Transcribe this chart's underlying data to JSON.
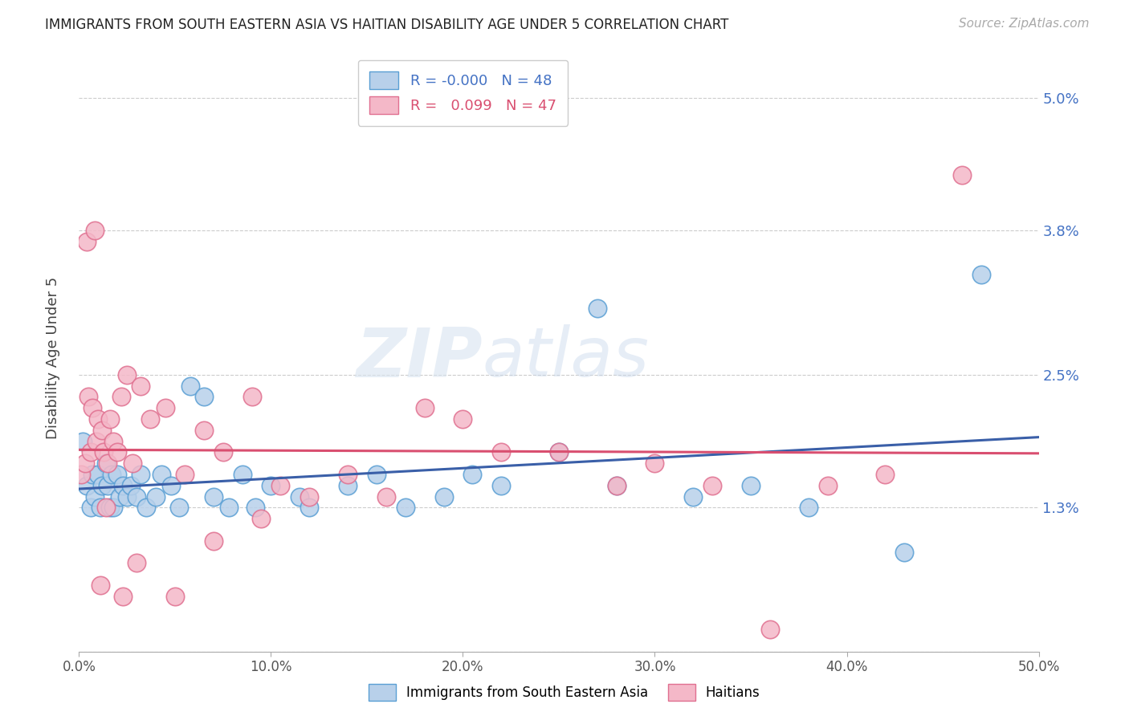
{
  "title": "IMMIGRANTS FROM SOUTH EASTERN ASIA VS HAITIAN DISABILITY AGE UNDER 5 CORRELATION CHART",
  "source": "Source: ZipAtlas.com",
  "ylabel": "Disability Age Under 5",
  "xlim": [
    0,
    50
  ],
  "ylim": [
    0,
    5.3
  ],
  "yticks": [
    0,
    1.3,
    2.5,
    3.8,
    5.0
  ],
  "xticks": [
    0,
    10,
    20,
    30,
    40,
    50
  ],
  "xtick_labels": [
    "0.0%",
    "10.0%",
    "20.0%",
    "30.0%",
    "40.0%",
    "50.0%"
  ],
  "ytick_labels": [
    "",
    "1.3%",
    "2.5%",
    "3.8%",
    "5.0%"
  ],
  "series1_label": "Immigrants from South Eastern Asia",
  "series2_label": "Haitians",
  "series1_color": "#b8d0ea",
  "series2_color": "#f4b8c8",
  "series1_edge": "#5a9fd4",
  "series2_edge": "#e07090",
  "trendline1_color": "#3a5fa8",
  "trendline2_color": "#d94f70",
  "watermark_zip": "ZIP",
  "watermark_atlas": "atlas",
  "R1": -0.0,
  "R2": 0.099,
  "N1": 48,
  "N2": 47,
  "series1_x": [
    0.2,
    0.4,
    0.6,
    0.7,
    0.8,
    1.0,
    1.1,
    1.2,
    1.4,
    1.5,
    1.6,
    1.7,
    1.8,
    2.0,
    2.1,
    2.3,
    2.5,
    2.7,
    3.0,
    3.2,
    3.5,
    4.0,
    4.3,
    4.8,
    5.2,
    5.8,
    6.5,
    7.0,
    7.8,
    8.5,
    9.2,
    10.0,
    11.5,
    12.0,
    14.0,
    15.5,
    17.0,
    19.0,
    20.5,
    22.0,
    25.0,
    27.0,
    28.0,
    32.0,
    35.0,
    38.0,
    43.0,
    47.0
  ],
  "series1_y": [
    1.9,
    1.5,
    1.3,
    1.6,
    1.4,
    1.6,
    1.3,
    1.5,
    1.7,
    1.5,
    1.3,
    1.6,
    1.3,
    1.6,
    1.4,
    1.5,
    1.4,
    1.5,
    1.4,
    1.6,
    1.3,
    1.4,
    1.6,
    1.5,
    1.3,
    2.4,
    2.3,
    1.4,
    1.3,
    1.6,
    1.3,
    1.5,
    1.4,
    1.3,
    1.5,
    1.6,
    1.3,
    1.4,
    1.6,
    1.5,
    1.8,
    3.1,
    1.5,
    1.4,
    1.5,
    1.3,
    0.9,
    3.4
  ],
  "series2_x": [
    0.1,
    0.3,
    0.5,
    0.6,
    0.7,
    0.9,
    1.0,
    1.2,
    1.3,
    1.5,
    1.6,
    1.8,
    2.0,
    2.2,
    2.5,
    2.8,
    3.2,
    3.7,
    4.5,
    5.5,
    6.5,
    7.5,
    9.0,
    10.5,
    12.0,
    14.0,
    16.0,
    18.0,
    20.0,
    22.0,
    25.0,
    28.0,
    30.0,
    33.0,
    36.0,
    39.0,
    42.0,
    46.0,
    0.4,
    0.8,
    1.1,
    1.4,
    2.3,
    3.0,
    5.0,
    7.0,
    9.5
  ],
  "series2_y": [
    1.6,
    1.7,
    2.3,
    1.8,
    2.2,
    1.9,
    2.1,
    2.0,
    1.8,
    1.7,
    2.1,
    1.9,
    1.8,
    2.3,
    2.5,
    1.7,
    2.4,
    2.1,
    2.2,
    1.6,
    2.0,
    1.8,
    2.3,
    1.5,
    1.4,
    1.6,
    1.4,
    2.2,
    2.1,
    1.8,
    1.8,
    1.5,
    1.7,
    1.5,
    0.2,
    1.5,
    1.6,
    4.3,
    3.7,
    3.8,
    0.6,
    1.3,
    0.5,
    0.8,
    0.5,
    1.0,
    1.2
  ]
}
